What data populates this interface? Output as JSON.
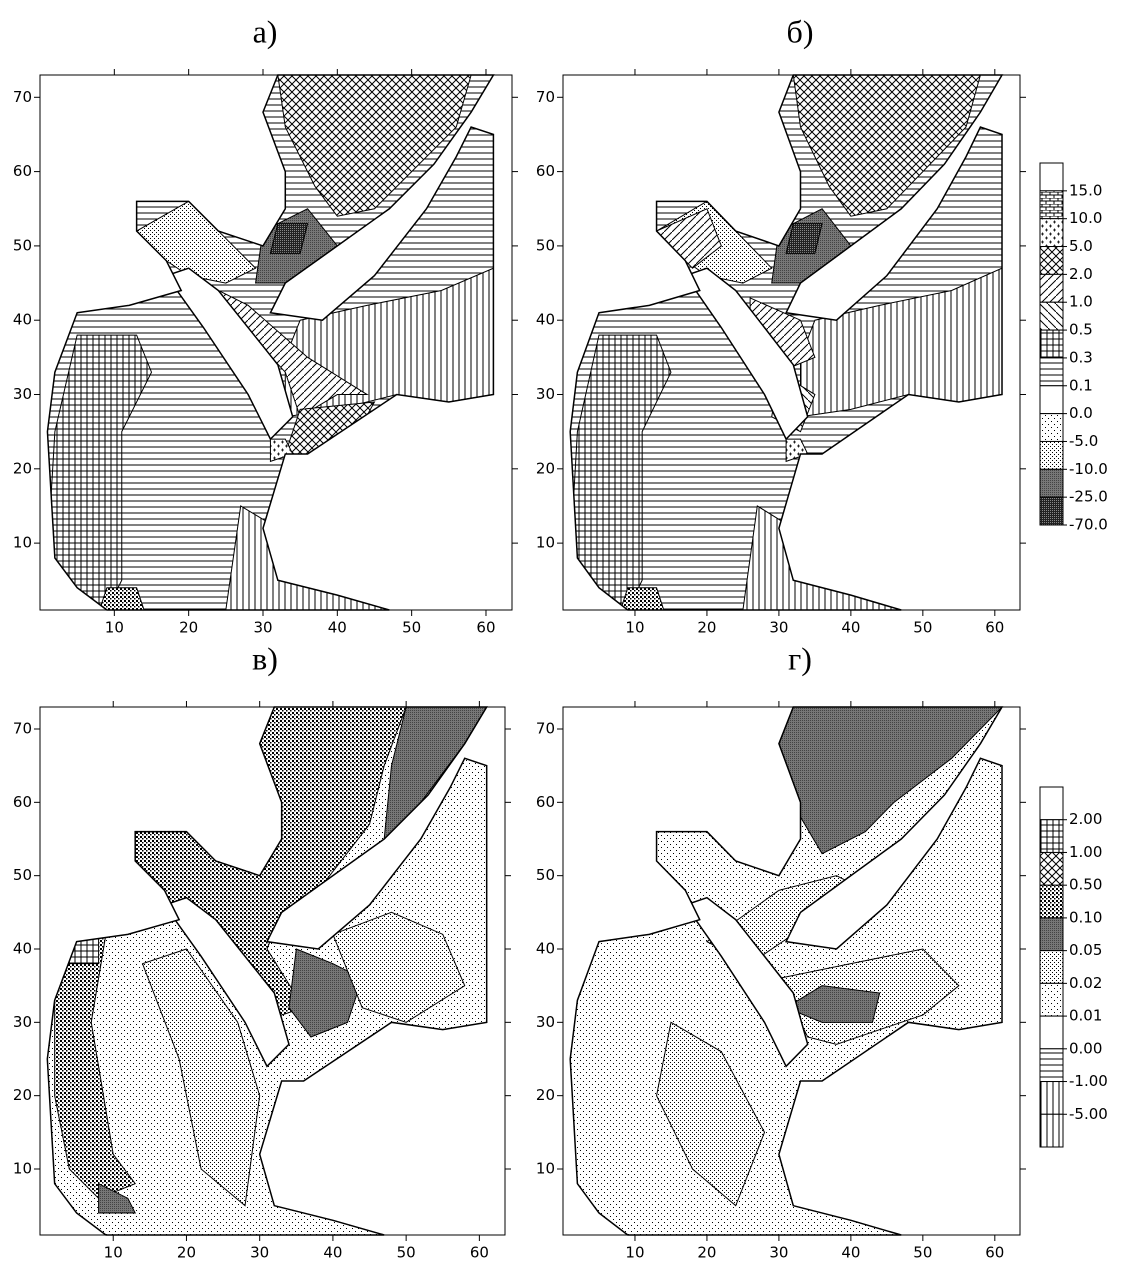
{
  "chart_data": [
    {
      "type": "contour",
      "title": "а)",
      "xlim": [
        0,
        63.5
      ],
      "ylim": [
        1,
        73
      ],
      "xticks": [
        10,
        20,
        30,
        40,
        50,
        60
      ],
      "yticks": [
        10,
        20,
        30,
        40,
        50,
        60,
        70
      ]
    },
    {
      "type": "contour",
      "title": "б)",
      "xlim": [
        0,
        63.5
      ],
      "ylim": [
        1,
        73
      ],
      "xticks": [
        10,
        20,
        30,
        40,
        50,
        60
      ],
      "yticks": [
        10,
        20,
        30,
        40,
        50,
        60,
        70
      ],
      "legend": [
        {
          "value": 15,
          "label": "15.0"
        },
        {
          "value": 10,
          "label": "10.0"
        },
        {
          "value": 5,
          "label": "5.0"
        },
        {
          "value": 2,
          "label": "2.0"
        },
        {
          "value": 1,
          "label": "1.0"
        },
        {
          "value": 0.5,
          "label": "0.5"
        },
        {
          "value": 0.3,
          "label": "0.3"
        },
        {
          "value": 0.1,
          "label": "0.1"
        },
        {
          "value": 0,
          "label": "0.0"
        },
        {
          "value": -5,
          "label": "-5.0"
        },
        {
          "value": -10,
          "label": "-10.0"
        },
        {
          "value": -25,
          "label": "-25.0"
        },
        {
          "value": -70,
          "label": "-70.0"
        }
      ]
    },
    {
      "type": "contour",
      "title": "в)",
      "xlim": [
        0,
        63.5
      ],
      "ylim": [
        1,
        73
      ],
      "xticks": [
        10,
        20,
        30,
        40,
        50,
        60
      ],
      "yticks": [
        10,
        20,
        30,
        40,
        50,
        60,
        70
      ]
    },
    {
      "type": "contour",
      "title": "г)",
      "xlim": [
        0,
        63.5
      ],
      "ylim": [
        1,
        73
      ],
      "xticks": [
        10,
        20,
        30,
        40,
        50,
        60
      ],
      "yticks": [
        10,
        20,
        30,
        40,
        50,
        60,
        70
      ],
      "legend": [
        {
          "value": 2,
          "label": "2.00"
        },
        {
          "value": 1,
          "label": "1.00"
        },
        {
          "value": 0.5,
          "label": "0.50"
        },
        {
          "value": 0.1,
          "label": "0.10"
        },
        {
          "value": 0.05,
          "label": "0.05"
        },
        {
          "value": 0.02,
          "label": "0.02"
        },
        {
          "value": 0.01,
          "label": "0.01"
        },
        {
          "value": 0,
          "label": "0.00"
        },
        {
          "value": -1,
          "label": "-1.00"
        },
        {
          "value": -5,
          "label": "-5.00"
        }
      ]
    }
  ]
}
